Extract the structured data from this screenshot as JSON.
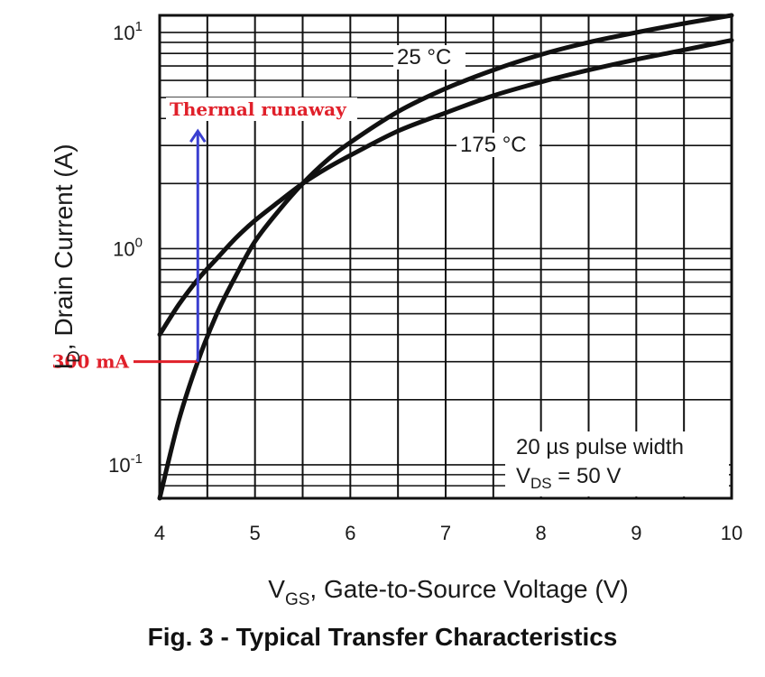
{
  "chart_data": {
    "type": "line",
    "title": "Fig. 3 - Typical Transfer Characteristics",
    "xlabel": {
      "main": "V",
      "sub": "GS",
      "rest": ", Gate-to-Source Voltage (V)"
    },
    "ylabel": {
      "main": "I",
      "sub": "D",
      "rest": ", Drain Current (A)"
    },
    "xlim": [
      4,
      10
    ],
    "ylim": [
      0.07,
      12
    ],
    "yscale": "log",
    "grid": true,
    "x_ticks": [
      "4",
      "5",
      "6",
      "7",
      "8",
      "9",
      "10"
    ],
    "y_ticks": [
      {
        "base": "10",
        "exp": "-1",
        "value": 0.1
      },
      {
        "base": "10",
        "exp": "0",
        "value": 1
      },
      {
        "base": "10",
        "exp": "1",
        "value": 10
      }
    ],
    "series": [
      {
        "name": "25 °C",
        "x": [
          4.0,
          4.2,
          4.4,
          4.6,
          4.8,
          5.0,
          5.25,
          5.5,
          5.75,
          6.0,
          6.5,
          7.0,
          7.5,
          8.0,
          8.5,
          9.0,
          9.5,
          10.0
        ],
        "y": [
          0.07,
          0.16,
          0.3,
          0.5,
          0.75,
          1.08,
          1.5,
          2.0,
          2.55,
          3.1,
          4.3,
          5.5,
          6.7,
          7.9,
          9.0,
          10.0,
          11.0,
          12.0
        ]
      },
      {
        "name": "175 °C",
        "x": [
          4.0,
          4.2,
          4.4,
          4.6,
          4.8,
          5.0,
          5.25,
          5.5,
          5.75,
          6.0,
          6.5,
          7.0,
          7.5,
          8.0,
          8.5,
          9.0,
          9.5,
          10.0
        ],
        "y": [
          0.4,
          0.55,
          0.72,
          0.9,
          1.12,
          1.35,
          1.65,
          2.0,
          2.35,
          2.7,
          3.5,
          4.25,
          5.1,
          5.9,
          6.7,
          7.5,
          8.3,
          9.2
        ]
      }
    ],
    "annotations": {
      "pulse_note": "20 µs pulse width",
      "vds_note": {
        "main": "V",
        "sub": "DS",
        "rest": " = 50 V"
      },
      "current_marker": {
        "label": "300 mA",
        "value": 0.3
      },
      "arrow_x": 4.4,
      "arrow_to": 3.5,
      "runaway_label": "Thermal runaway"
    },
    "colors": {
      "curve": "#111111",
      "grid": "#111111",
      "marker": "#e0202a",
      "arrow": "#3a3fd0"
    }
  }
}
